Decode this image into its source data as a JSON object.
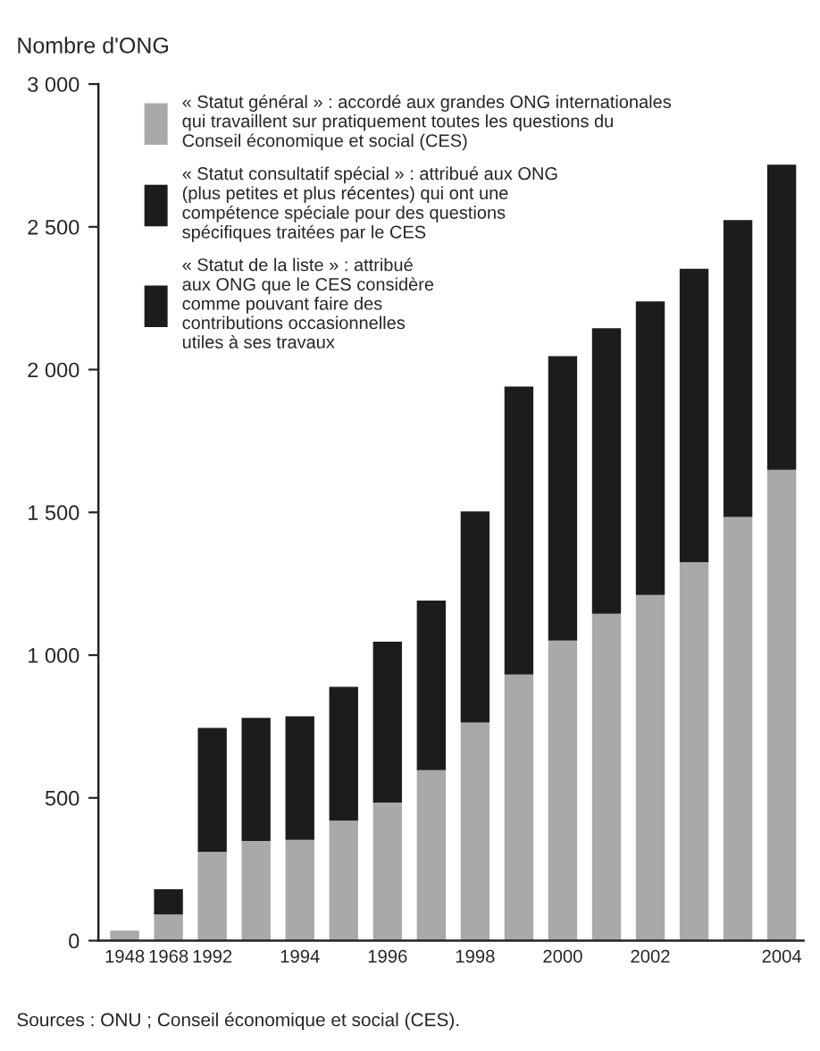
{
  "chart_data": {
    "type": "bar",
    "stacked": true,
    "ylabel": "Nombre d'ONG",
    "categories": [
      "1948",
      "1968",
      "1992",
      null,
      "1994",
      null,
      "1996",
      null,
      "1998",
      null,
      "2000",
      null,
      "2002",
      null,
      null,
      "2004"
    ],
    "series": [
      {
        "name": "« Statut général » : accordé aux grandes ONG internationales\nqui travaillent sur pratiquement toutes les questions du\nConseil économique et social (CES)",
        "color": "#a9a9a9",
        "values": [
          35,
          92,
          311,
          349,
          353,
          420,
          484,
          597,
          764,
          932,
          1051,
          1145,
          1211,
          1326,
          1484,
          1649
        ]
      },
      {
        "name": "« Statut consultatif spécial » : attribué aux ONG\n(plus petites et plus récentes) qui ont une\ncompétence spéciale pour des questions\nspécifiques traitées par le CES",
        "color": "#1c1c1c",
        "values": [
          null,
          88,
          434,
          431,
          433,
          469,
          563,
          594,
          739,
          1009,
          996,
          1000,
          1028,
          1027,
          1040,
          1069
        ]
      },
      {
        "name": "« Statut de la liste » : attribué\naux ONG que le CES considère\ncomme pouvant faire des\ncontributions occasionnelles\nutiles à ses travaux",
        "color": "#1c1c1c",
        "values": [
          null,
          null,
          null,
          null,
          null,
          null,
          null,
          null,
          null,
          null,
          null,
          null,
          null,
          null,
          null,
          null
        ]
      }
    ],
    "ylim": [
      0,
      3000
    ],
    "yticks": [
      0,
      500,
      {
        "value": 1000,
        "label": "1 000"
      },
      {
        "value": 1500,
        "label": "1 500"
      },
      {
        "value": 2000,
        "label": "2 000"
      },
      {
        "value": 2500,
        "label": "2 500"
      },
      {
        "value": 3000,
        "label": "3 000"
      }
    ],
    "legend": "top left",
    "grid": false,
    "annotations": [
      "Sources : ONU ; Conseil économique et social (CES)."
    ]
  }
}
